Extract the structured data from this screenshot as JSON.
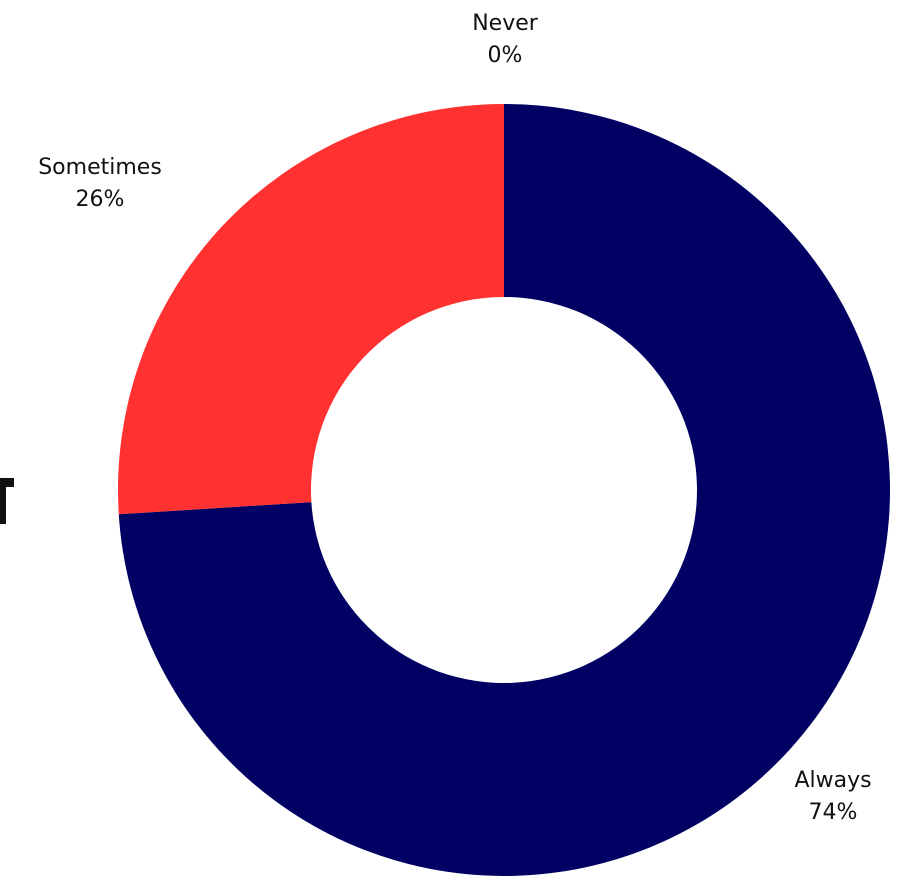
{
  "chart_data": {
    "type": "pie",
    "donut": true,
    "categories": [
      "Always",
      "Never",
      "Sometimes"
    ],
    "values": [
      74,
      0,
      26
    ],
    "value_labels": [
      "74%",
      "0%",
      "26%"
    ],
    "colors": [
      "#010163",
      "#ff3131",
      "#ff3131"
    ],
    "title": "",
    "legend": "none"
  }
}
